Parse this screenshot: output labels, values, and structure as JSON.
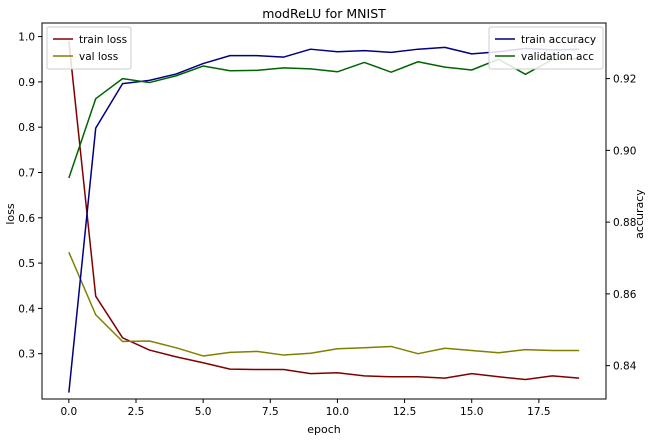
{
  "chart_data": {
    "type": "line",
    "title": "modReLU for MNIST",
    "xlabel": "epoch",
    "ylabel_left": "loss",
    "ylabel_right": "accuracy",
    "xlim": [
      -1,
      20
    ],
    "ylim_left": [
      0.2,
      1.03
    ],
    "ylim_right": [
      0.8307,
      0.9355
    ],
    "x_ticks": [
      0.0,
      2.5,
      5.0,
      7.5,
      10.0,
      12.5,
      15.0,
      17.5
    ],
    "x_tick_labels": [
      "0.0",
      "2.5",
      "5.0",
      "7.5",
      "10.0",
      "12.5",
      "15.0",
      "17.5"
    ],
    "y_ticks_left": [
      0.3,
      0.4,
      0.5,
      0.6,
      0.7,
      0.8,
      0.9,
      1.0
    ],
    "y_tick_labels_left": [
      "0.3",
      "0.4",
      "0.5",
      "0.6",
      "0.7",
      "0.8",
      "0.9",
      "1.0"
    ],
    "y_ticks_right": [
      0.84,
      0.86,
      0.88,
      0.9,
      0.92
    ],
    "y_tick_labels_right": [
      "0.84",
      "0.86",
      "0.88",
      "0.90",
      "0.92"
    ],
    "x": [
      0,
      1,
      2,
      3,
      4,
      5,
      6,
      7,
      8,
      9,
      10,
      11,
      12,
      13,
      14,
      15,
      16,
      17,
      18,
      19
    ],
    "series_left": [
      {
        "name": "train loss",
        "color": "#800000",
        "values": [
          0.99,
          0.427,
          0.335,
          0.308,
          0.293,
          0.28,
          0.266,
          0.265,
          0.265,
          0.256,
          0.258,
          0.251,
          0.249,
          0.249,
          0.246,
          0.256,
          0.249,
          0.243,
          0.251,
          0.246
        ]
      },
      {
        "name": "val loss",
        "color": "#808000",
        "values": [
          0.524,
          0.386,
          0.327,
          0.328,
          0.313,
          0.295,
          0.303,
          0.305,
          0.297,
          0.301,
          0.311,
          0.313,
          0.316,
          0.3,
          0.312,
          0.307,
          0.302,
          0.309,
          0.307,
          0.307
        ]
      }
    ],
    "series_right": [
      {
        "name": "train accuracy",
        "color": "#000080",
        "values": [
          0.8325,
          0.9062,
          0.9186,
          0.9195,
          0.9213,
          0.9242,
          0.9264,
          0.9264,
          0.926,
          0.9282,
          0.9275,
          0.9278,
          0.9273,
          0.9282,
          0.9287,
          0.9269,
          0.9275,
          0.9284,
          0.928,
          0.9282
        ]
      },
      {
        "name": "validation acc",
        "color": "#006400",
        "values": [
          0.8923,
          0.9144,
          0.92,
          0.9189,
          0.9208,
          0.9235,
          0.9222,
          0.9223,
          0.923,
          0.9227,
          0.9219,
          0.9245,
          0.9218,
          0.9247,
          0.9232,
          0.9224,
          0.9254,
          0.9212,
          0.9253,
          0.9256
        ]
      }
    ],
    "legend_left": {
      "placement": "upper-left"
    },
    "legend_right": {
      "placement": "upper-right"
    },
    "grid": false
  }
}
